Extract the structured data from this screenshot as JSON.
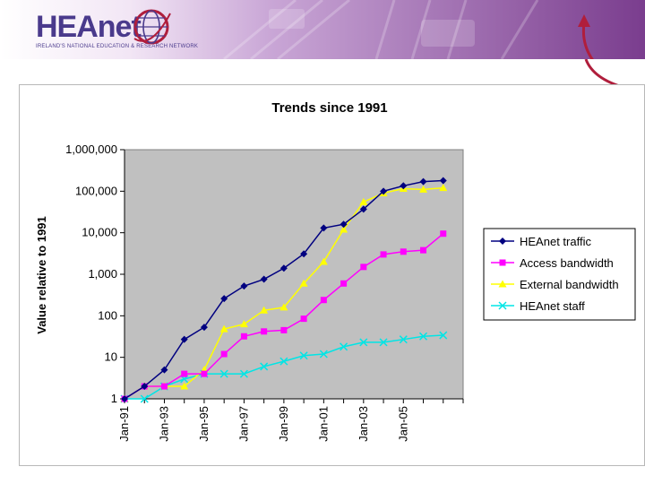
{
  "banner": {
    "brand_name": "HEAnet",
    "tagline": "IRELAND'S NATIONAL EDUCATION & RESEARCH NETWORK",
    "colors": {
      "purple_light": "#c9a6d6",
      "purple_dark": "#7a3d8e",
      "brand_text": "#4a3a8c",
      "arrow": "#b01e3c"
    },
    "icons": [
      "globe-logo-icon",
      "curved-arrow-icon"
    ]
  },
  "chart_data": {
    "type": "line",
    "title": "Trends since 1991",
    "xlabel": "",
    "ylabel": "Value relative to 1991",
    "y_scale": "log",
    "ylim": [
      1,
      1000000
    ],
    "y_ticks": [
      "1",
      "10",
      "100",
      "1,000",
      "10,000",
      "100,000",
      "1,000,000"
    ],
    "x_tick_labels": [
      "Jan-91",
      "Jan-93",
      "Jan-95",
      "Jan-97",
      "Jan-99",
      "Jan-01",
      "Jan-03",
      "Jan-05"
    ],
    "x": [
      "1991",
      "1992",
      "1993",
      "1994",
      "1995",
      "1996",
      "1997",
      "1998",
      "1999",
      "2000",
      "2001",
      "2002",
      "2003",
      "2004",
      "2005",
      "2006",
      "2007"
    ],
    "grid": false,
    "plot_background": "#c0c0c0",
    "legend": "right",
    "series": [
      {
        "name": "HEAnet traffic",
        "color": "#000080",
        "marker": "diamond",
        "values": [
          1,
          2,
          5,
          27,
          53,
          260,
          520,
          760,
          1400,
          3100,
          13000,
          16000,
          37000,
          100000,
          135000,
          170000,
          180000
        ]
      },
      {
        "name": "Access bandwidth",
        "color": "#ff00ff",
        "marker": "square",
        "values": [
          1,
          2,
          2,
          4,
          4,
          12,
          32,
          42,
          45,
          85,
          240,
          600,
          1500,
          3000,
          3500,
          3800,
          9500
        ]
      },
      {
        "name": "External bandwidth",
        "color": "#ffff00",
        "marker": "triangle",
        "values": [
          1,
          2,
          2,
          2,
          5,
          48,
          63,
          135,
          160,
          600,
          2000,
          12000,
          55000,
          90000,
          115000,
          110000,
          120000
        ]
      },
      {
        "name": "HEAnet staff",
        "color": "#00e5e5",
        "marker": "x",
        "values": [
          1,
          1,
          2,
          3,
          4,
          4,
          4,
          6,
          8,
          11,
          12,
          18,
          23,
          23,
          27,
          32,
          34
        ]
      }
    ]
  }
}
